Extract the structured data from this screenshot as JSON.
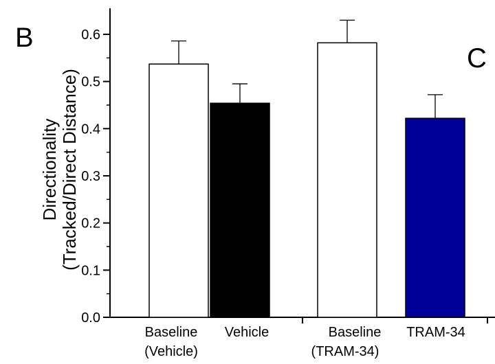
{
  "panel_label": "B",
  "cut_off_label": "C",
  "chart_data": {
    "type": "bar",
    "ylabel_line1": "Directionality",
    "ylabel_line2": "(Tracked/Direct Distance)",
    "ylim": [
      0,
      0.65
    ],
    "yticks": [
      "0.0",
      "0.1",
      "0.2",
      "0.3",
      "0.4",
      "0.5",
      "0.6"
    ],
    "grid": false,
    "categories": [
      {
        "line1": "Baseline",
        "line2": "(Vehicle)"
      },
      {
        "line1": "Vehicle",
        "line2": ""
      },
      {
        "line1": "Baseline",
        "line2": "(TRAM-34)"
      },
      {
        "line1": "TRAM-34",
        "line2": ""
      }
    ],
    "values": [
      0.537,
      0.454,
      0.582,
      0.422
    ],
    "errors": [
      0.049,
      0.041,
      0.048,
      0.05
    ],
    "colors": [
      "#ffffff",
      "#000000",
      "#ffffff",
      "#000099"
    ]
  }
}
